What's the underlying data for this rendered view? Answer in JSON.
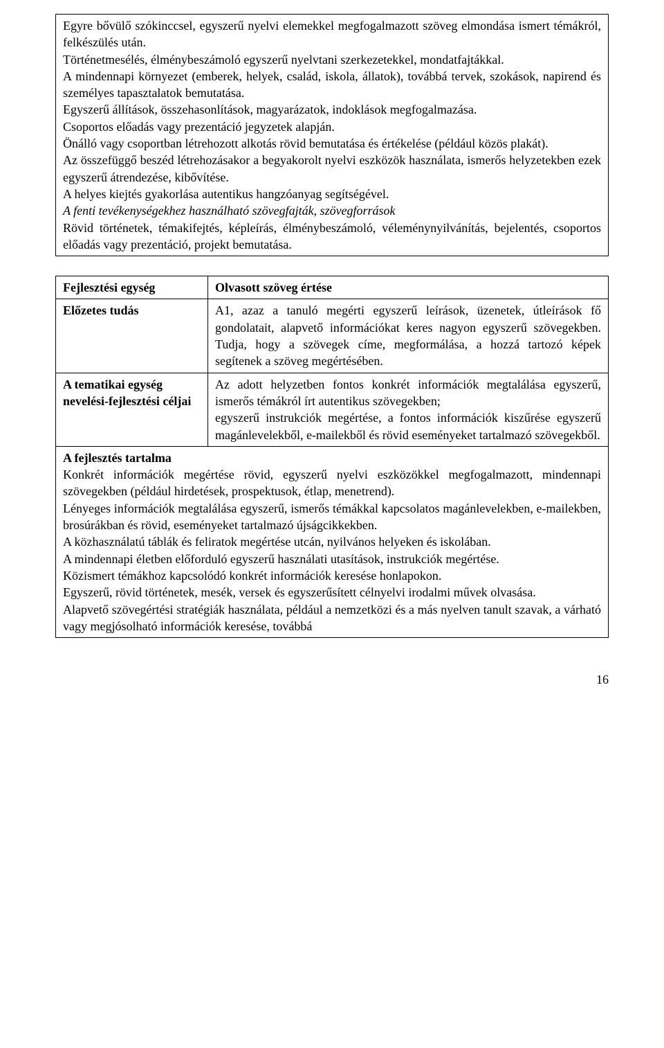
{
  "box1": {
    "p1": "Egyre bővülő szókinccsel, egyszerű nyelvi elemekkel megfogalmazott szöveg elmondása ismert témákról, felkészülés után.",
    "p2": "Történetmesélés, élménybeszámoló egyszerű nyelvtani szerkezetekkel, mondatfajtákkal.",
    "p3": "A mindennapi környezet (emberek, helyek, család, iskola, állatok), továbbá tervek, szokások, napirend és személyes tapasztalatok bemutatása.",
    "p4": "Egyszerű állítások, összehasonlítások, magyarázatok, indoklások megfogalmazása.",
    "p5": "Csoportos előadás vagy prezentáció jegyzetek alapján.",
    "p6": "Önálló vagy csoportban létrehozott alkotás rövid bemutatása és értékelése (például közös plakát).",
    "p7": "Az összefüggő beszéd létrehozásakor a begyakorolt nyelvi eszközök használata, ismerős helyzetekben ezek egyszerű átrendezése, kibővítése.",
    "p8": "A helyes kiejtés gyakorlása autentikus hangzóanyag segítségével.",
    "p9_italic": "A fenti tevékenységekhez használható szövegfajták, szövegforrások",
    "p10": "Rövid történetek, témakifejtés, képleírás, élménybeszámoló, véleménynyilvánítás, bejelentés, csoportos előadás vagy prezentáció, projekt bemutatása."
  },
  "box2": {
    "r1_left": "Fejlesztési egység",
    "r1_right": "Olvasott szöveg értése",
    "r2_left": "Előzetes tudás",
    "r2_right": "A1, azaz a tanuló megérti egyszerű leírások, üzenetek, útleírások fő gondolatait, alapvető információkat keres nagyon egyszerű szövegekben. Tudja, hogy a szövegek címe, megformálása, a hozzá tartozó képek segítenek a szöveg megértésében.",
    "r3_left": "A tematikai egység nevelési-fejlesztési céljai",
    "r3_right_a": "Az adott helyzetben fontos konkrét információk megtalálása egyszerű, ismerős témákról írt autentikus szövegekben;",
    "r3_right_b": "egyszerű instrukciók megértése, a fontos információk kiszűrése egyszerű magánlevelekből, e-mailekből és rövid eseményeket tartalmazó szövegekből.",
    "r4_heading": "A fejlesztés tartalma",
    "r4_p1": "Konkrét információk megértése rövid, egyszerű nyelvi eszközökkel megfogalmazott, mindennapi szövegekben (például hirdetések, prospektusok, étlap, menetrend).",
    "r4_p2": "Lényeges információk megtalálása egyszerű, ismerős témákkal kapcsolatos magánlevelekben, e-mailekben, brosúrákban és rövid, eseményeket tartalmazó újságcikkekben.",
    "r4_p3": "A közhasználatú táblák és feliratok megértése utcán, nyilvános helyeken és iskolában.",
    "r4_p4": "A mindennapi életben előforduló egyszerű használati utasítások, instrukciók megértése.",
    "r4_p5": "Közismert témákhoz kapcsolódó konkrét információk keresése honlapokon.",
    "r4_p6": "Egyszerű, rövid történetek, mesék, versek és egyszerűsített célnyelvi irodalmi művek olvasása.",
    "r4_p7": "Alapvető szövegértési stratégiák használata, például a nemzetközi és a más nyelven tanult szavak, a várható vagy megjósolható információk keresése, továbbá"
  },
  "page_number": "16"
}
